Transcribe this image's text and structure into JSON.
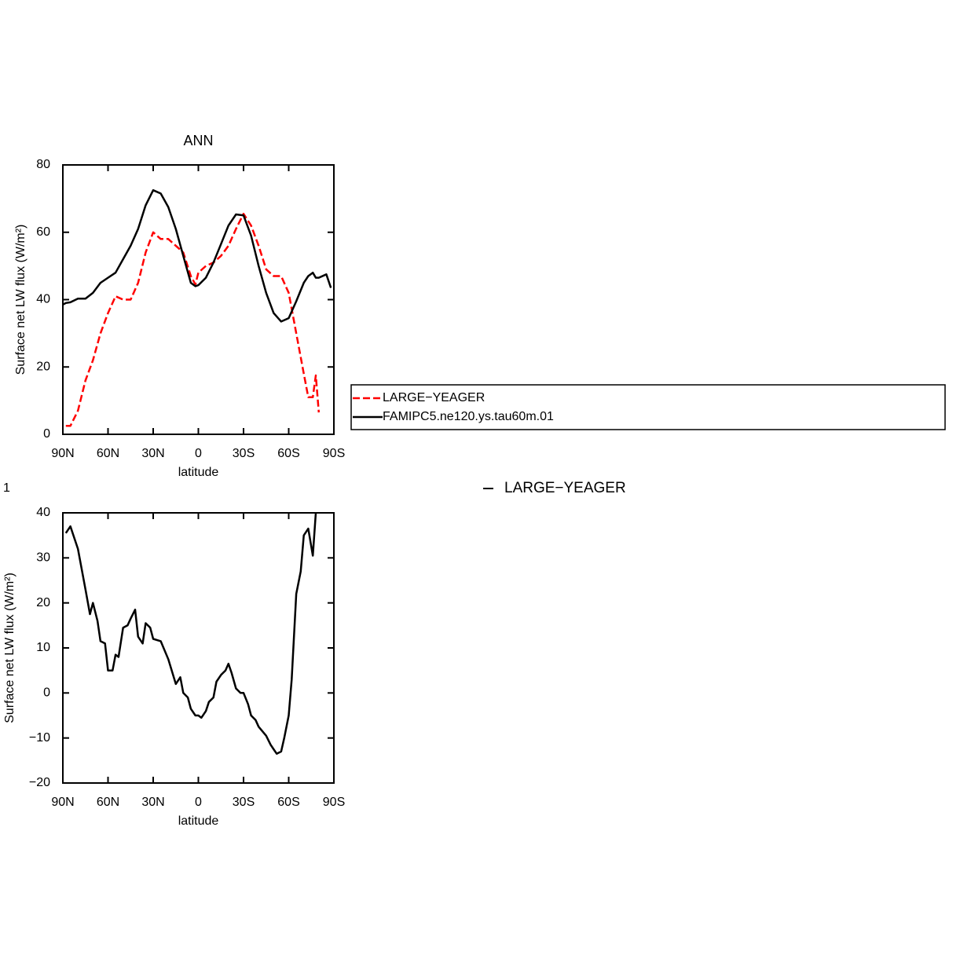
{
  "chart_data": [
    {
      "type": "line",
      "title": "ANN",
      "ylabel": "Surface net LW flux (W/m²)",
      "xlabel": "latitude",
      "x": [
        90,
        88,
        85,
        80,
        75,
        70,
        65,
        60,
        55,
        50,
        45,
        40,
        35,
        30,
        25,
        20,
        15,
        10,
        5,
        2,
        0,
        -5,
        -10,
        -15,
        -20,
        -25,
        -30,
        -35,
        -40,
        -45,
        -50,
        -55,
        -60,
        -65,
        -70,
        -73,
        -76,
        -78,
        -80,
        -85,
        -88
      ],
      "xlim": [
        90,
        -90
      ],
      "xticks": [
        {
          "value": 90,
          "label": "90N"
        },
        {
          "value": 60,
          "label": "60N"
        },
        {
          "value": 30,
          "label": "30N"
        },
        0,
        {
          "value": -30,
          "label": "30S"
        },
        {
          "value": -60,
          "label": "60S"
        },
        {
          "value": -90,
          "label": "90S"
        }
      ],
      "ylim": [
        0,
        80
      ],
      "yticks": [
        0,
        20,
        40,
        60,
        80
      ],
      "legend": "right",
      "series": [
        {
          "name": "LARGE−YEAGER",
          "color": "#ff0000",
          "dashed": true,
          "values": [
            null,
            2.5,
            2.5,
            7,
            16,
            22,
            30,
            36,
            41,
            40,
            40,
            45,
            54,
            60,
            58,
            58,
            56,
            54,
            47,
            44.5,
            48,
            50,
            51,
            53,
            56,
            61,
            65.5,
            62,
            56,
            49,
            47,
            47,
            42,
            30,
            18,
            11,
            11,
            17.5,
            6.5,
            null,
            null
          ]
        },
        {
          "name": "FAMIPC5.ne120.ys.tau60m.01",
          "color": "#000000",
          "dashed": false,
          "values": [
            38.5,
            39,
            39.2,
            40.3,
            40.3,
            42,
            45,
            46.5,
            48,
            52,
            56,
            61,
            68,
            72.5,
            71.5,
            67.5,
            61,
            53,
            45,
            44,
            44.3,
            46.5,
            51,
            56.5,
            62,
            65.3,
            65,
            59,
            50,
            42,
            36,
            33.5,
            34.5,
            39.5,
            45,
            47,
            48,
            46.5,
            46.5,
            47.5,
            43.5
          ]
        }
      ]
    },
    {
      "type": "line",
      "panel_label": "1",
      "subtitle": "LARGE−YEAGER",
      "ylabel": "Surface net LW flux (W/m²)",
      "xlabel": "latitude",
      "x": [
        88,
        85,
        80,
        75,
        72,
        70,
        67,
        65,
        62,
        60,
        57,
        55,
        53,
        50,
        47,
        45,
        42,
        40,
        37,
        35,
        32,
        30,
        25,
        20,
        15,
        12,
        10,
        7,
        5,
        2,
        0,
        -2,
        -5,
        -7,
        -10,
        -12,
        -15,
        -18,
        -20,
        -22,
        -25,
        -28,
        -30,
        -33,
        -35,
        -38,
        -40,
        -45,
        -48,
        -50,
        -52,
        -55,
        -57,
        -60,
        -62,
        -65,
        -68,
        -70,
        -73,
        -76,
        -78
      ],
      "values": [
        35.5,
        37,
        32,
        23,
        17.5,
        20,
        16,
        11.5,
        11,
        5,
        5,
        8.5,
        8,
        14.5,
        15,
        16.5,
        18.5,
        12.5,
        11,
        15.5,
        14.5,
        12,
        11.5,
        7.5,
        2,
        3.5,
        0,
        -1,
        -3.5,
        -5,
        -5,
        -5.5,
        -4,
        -2,
        -1,
        2.5,
        4,
        5,
        6.5,
        4.5,
        1,
        0,
        0,
        -2.5,
        -5,
        -6,
        -7.5,
        -9.5,
        -11.5,
        -12.5,
        -13.5,
        -13,
        -10,
        -5,
        3,
        22,
        27,
        35,
        36.5,
        30.5,
        40
      ],
      "color": "#000000",
      "xlim": [
        90,
        -90
      ],
      "xticks": [
        {
          "value": 90,
          "label": "90N"
        },
        {
          "value": 60,
          "label": "60N"
        },
        {
          "value": 30,
          "label": "30N"
        },
        0,
        {
          "value": -30,
          "label": "30S"
        },
        {
          "value": -60,
          "label": "60S"
        },
        {
          "value": -90,
          "label": "90S"
        }
      ],
      "ylim": [
        -20,
        40
      ],
      "yticks": [
        {
          "value": -20,
          "label": "−20"
        },
        {
          "value": -10,
          "label": "−10"
        },
        0,
        10,
        20,
        30,
        40
      ]
    }
  ]
}
